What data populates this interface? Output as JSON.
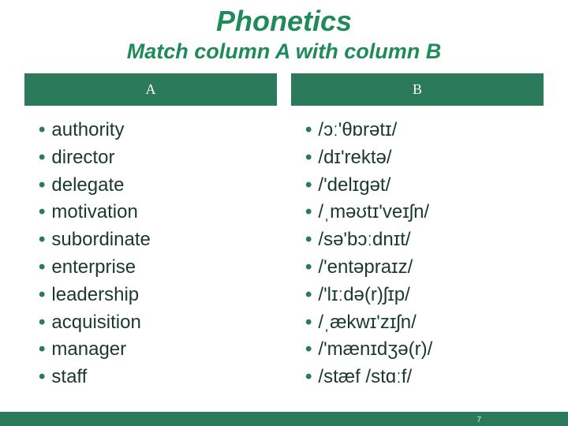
{
  "colors": {
    "accent": "#1f8a5a",
    "header_bg": "#2b7a5b",
    "bullet": "#2b7a5b",
    "text": "#1a3a2a",
    "footer_bar": "#2b7a5b"
  },
  "title": "Phonetics",
  "subtitle": "Match column A with column B",
  "columns": {
    "a": {
      "header": "A",
      "items": [
        "authority",
        "director",
        "delegate",
        "motivation",
        "subordinate",
        "enterprise",
        "leadership",
        "acquisition",
        "manager",
        "staff"
      ]
    },
    "b": {
      "header": "B",
      "items": [
        "/ɔː'θɒrətɪ/",
        "/dɪ'rektə/",
        "/'delɪgət/",
        "/ˌməʊtɪ'veɪʃn/",
        "/sə'bɔːdnɪt/",
        "/'entəpraɪz/",
        "/'lɪːdə(r)ʃɪp/",
        "/ˌækwɪ'zɪʃn/",
        "/'mænɪdʒə(r)/",
        "/stæf /stɑːf/"
      ]
    }
  },
  "footer_number": "7"
}
